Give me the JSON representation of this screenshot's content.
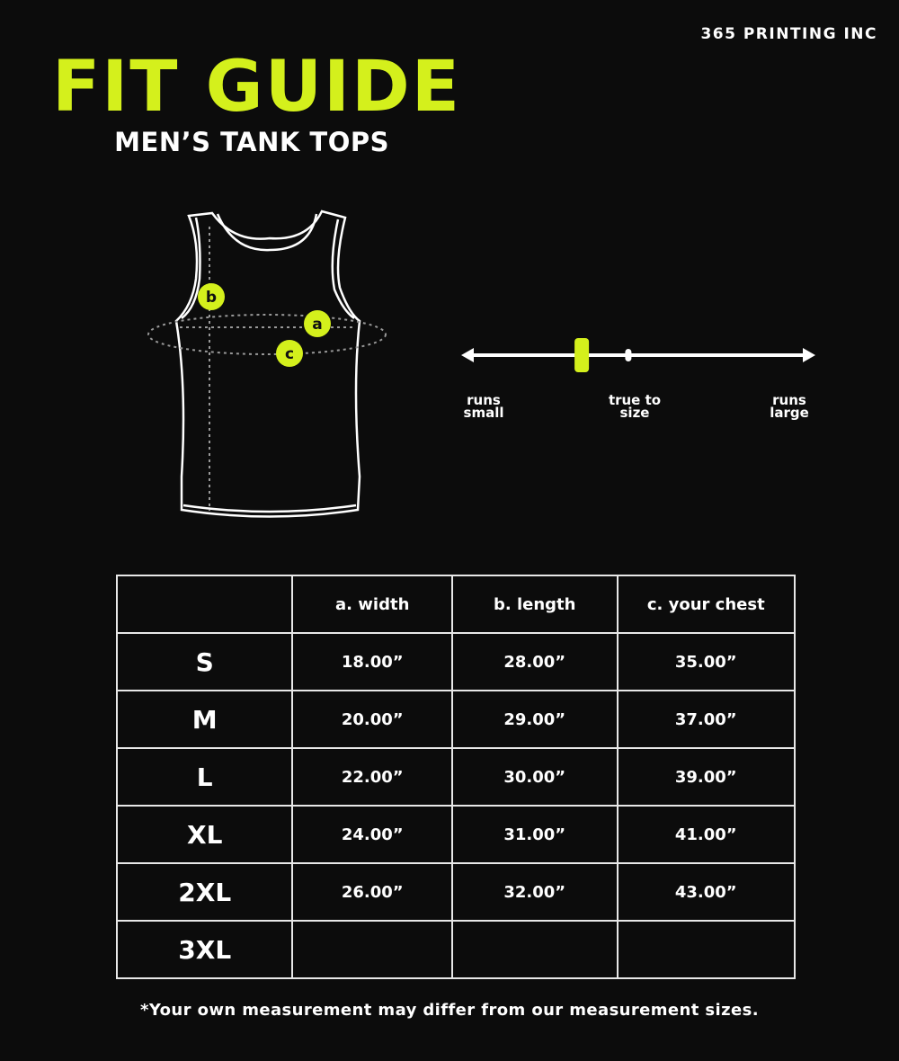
{
  "brand": "365 PRINTING INC",
  "title": "FIT GUIDE",
  "subtitle": "MEN’S TANK TOPS",
  "diagram": {
    "labels": {
      "a": "a",
      "b": "b",
      "c": "c"
    }
  },
  "fit_scale": {
    "left_label_1": "runs",
    "left_label_2": "small",
    "mid_label_1": "true to",
    "mid_label_2": "size",
    "right_label_1": "runs",
    "right_label_2": "large",
    "indicator_position": 0.33,
    "true_to_size_position": 0.47
  },
  "table": {
    "headers": [
      "",
      "a. width",
      "b. length",
      "c. your chest"
    ],
    "rows": [
      [
        "S",
        "18.00”",
        "28.00”",
        "35.00”"
      ],
      [
        "M",
        "20.00”",
        "29.00”",
        "37.00”"
      ],
      [
        "L",
        "22.00”",
        "30.00”",
        "39.00”"
      ],
      [
        "XL",
        "24.00”",
        "31.00”",
        "41.00”"
      ],
      [
        "2XL",
        "26.00”",
        "32.00”",
        "43.00”"
      ],
      [
        "3XL",
        "",
        "",
        ""
      ]
    ]
  },
  "note": "*Your own measurement may differ from our measurement sizes.",
  "colors": {
    "accent": "#d4f01c",
    "background": "#0c0c0c",
    "text": "#ffffff"
  }
}
